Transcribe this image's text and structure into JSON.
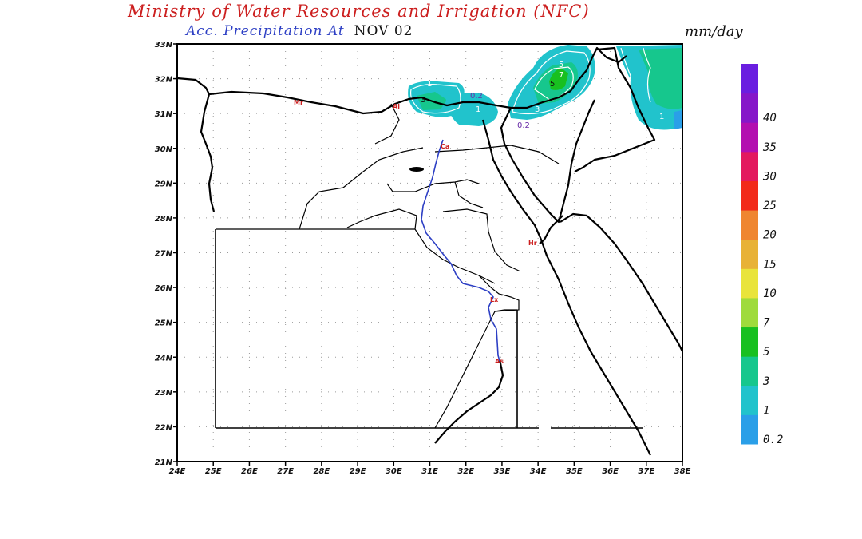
{
  "header": {
    "title": "Ministry of Water Resources and Irrigation (NFC)",
    "subtitle_label": "Acc. Precipitation  At",
    "date": "NOV 02",
    "units": "mm/day"
  },
  "map": {
    "lat_labels": [
      "33N",
      "32N",
      "31N",
      "30N",
      "29N",
      "28N",
      "27N",
      "26N",
      "25N",
      "24N",
      "23N",
      "22N",
      "21N"
    ],
    "lon_labels": [
      "24E",
      "25E",
      "26E",
      "27E",
      "28E",
      "29E",
      "30E",
      "31E",
      "32E",
      "33E",
      "34E",
      "35E",
      "36E",
      "37E",
      "38E"
    ],
    "contour_labels": [
      "1",
      "3",
      "0.2",
      "1",
      "5",
      "7",
      "5",
      "0.2",
      "3",
      "1"
    ],
    "station_labels": [
      "Mr",
      "Al",
      "Ca",
      "Hr",
      "Lx",
      "As"
    ]
  },
  "legend": {
    "title": "mm/day",
    "entries": [
      {
        "label": "0.2",
        "color": "#2a9fe8"
      },
      {
        "label": "1",
        "color": "#21c3cc"
      },
      {
        "label": "3",
        "color": "#16c78d"
      },
      {
        "label": "5",
        "color": "#18c020"
      },
      {
        "label": "7",
        "color": "#9fdb3c"
      },
      {
        "label": "10",
        "color": "#e9e43b"
      },
      {
        "label": "15",
        "color": "#e8b236"
      },
      {
        "label": "20",
        "color": "#ef8630"
      },
      {
        "label": "25",
        "color": "#f22a1a"
      },
      {
        "label": "30",
        "color": "#e3195f"
      },
      {
        "label": "35",
        "color": "#b30fb0"
      },
      {
        "label": "40",
        "color": "#8617c9"
      },
      {
        "label": "",
        "color": "#6a1ee0"
      }
    ]
  }
}
